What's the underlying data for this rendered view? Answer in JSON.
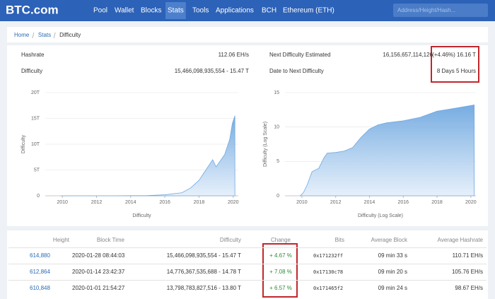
{
  "nav": {
    "logo": "BTC.com",
    "links": [
      "Pool",
      "Wallet",
      "Blocks",
      "Stats",
      "Tools",
      "Applications",
      "BCH",
      "Ethereum (ETH)"
    ],
    "active": 3,
    "search_placeholder": "Address/Height/Hash..."
  },
  "breadcrumb": [
    "Home",
    "Stats",
    "Difficulty"
  ],
  "summary": {
    "hashrate_label": "Hashrate",
    "hashrate": "112.06 EH/s",
    "difficulty_label": "Difficulty",
    "difficulty": "15,466,098,935,554 - 15.47 T",
    "next_label": "Next Difficulty Estimated",
    "next_value": "16,156,657,114,126",
    "next_change": "(+4.46%) 16.16 T",
    "date_label": "Date to Next Difficulty",
    "date_value": "8 Days 5 Hours"
  },
  "chart_data": [
    {
      "type": "area",
      "x_label": "Difficulty",
      "y_label": "Difficulty",
      "color": "#6fa8e0",
      "grid": true,
      "x": [
        2009.9,
        2011,
        2012,
        2013,
        2014,
        2015,
        2016,
        2017,
        2017.5,
        2018,
        2018.5,
        2018.8,
        2019,
        2019.5,
        2019.8,
        2019.95,
        2020.1
      ],
      "values": [
        0,
        0,
        0,
        0,
        0.03,
        0.05,
        0.2,
        0.6,
        1.5,
        3,
        5.5,
        7,
        5.6,
        8,
        11,
        14,
        15.5
      ],
      "xlim": [
        2009,
        2020.3
      ],
      "xticks": [
        2010,
        2012,
        2014,
        2016,
        2018,
        2020
      ],
      "ylim": [
        0,
        20
      ],
      "yticks": [
        0,
        {
          "value": 5,
          "label": "5T"
        },
        {
          "value": 10,
          "label": "10T"
        },
        {
          "value": 15,
          "label": "15T"
        },
        {
          "value": 20,
          "label": "20T"
        }
      ]
    },
    {
      "type": "area",
      "x_label": "Difficulty (Log Scale)",
      "y_label": "Difficulty (Log Scale)",
      "color": "#6fa8e0",
      "grid": true,
      "x": [
        2009.9,
        2010.1,
        2010.3,
        2010.6,
        2011,
        2011.3,
        2011.5,
        2012,
        2012.5,
        2013,
        2013.5,
        2014,
        2014.5,
        2015,
        2016,
        2017,
        2018,
        2019,
        2020.2
      ],
      "values": [
        0,
        0.5,
        1.5,
        3.5,
        4,
        5.5,
        6.2,
        6.3,
        6.5,
        7,
        8.5,
        9.7,
        10.3,
        10.6,
        10.9,
        11.4,
        12.3,
        12.7,
        13.2
      ],
      "xlim": [
        2009,
        2020.3
      ],
      "xticks": [
        2010,
        2012,
        2014,
        2016,
        2018,
        2020
      ],
      "ylim": [
        0,
        15
      ],
      "yticks": [
        0,
        5,
        10,
        15
      ]
    }
  ],
  "table": {
    "columns": [
      "Height",
      "Block Time",
      "Difficulty",
      "Change",
      "Bits",
      "Average Block",
      "Average Hashrate"
    ],
    "rows": [
      [
        "614,880",
        "2020-01-28 08:44:03",
        "15,466,098,935,554 - 15.47 T",
        "+ 4.67 %",
        "0x171232ff",
        "09 min 33 s",
        "110.71 EH/s"
      ],
      [
        "612,864",
        "2020-01-14 23:42:37",
        "14,776,367,535,688 - 14.78 T",
        "+ 7.08 %",
        "0x17130c78",
        "09 min 20 s",
        "105.76 EH/s"
      ],
      [
        "610,848",
        "2020-01-01 21:54:27",
        "13,798,783,827,516 - 13.80 T",
        "+ 6.57 %",
        "0x171465f2",
        "09 min 24 s",
        "98.67 EH/s"
      ]
    ]
  }
}
